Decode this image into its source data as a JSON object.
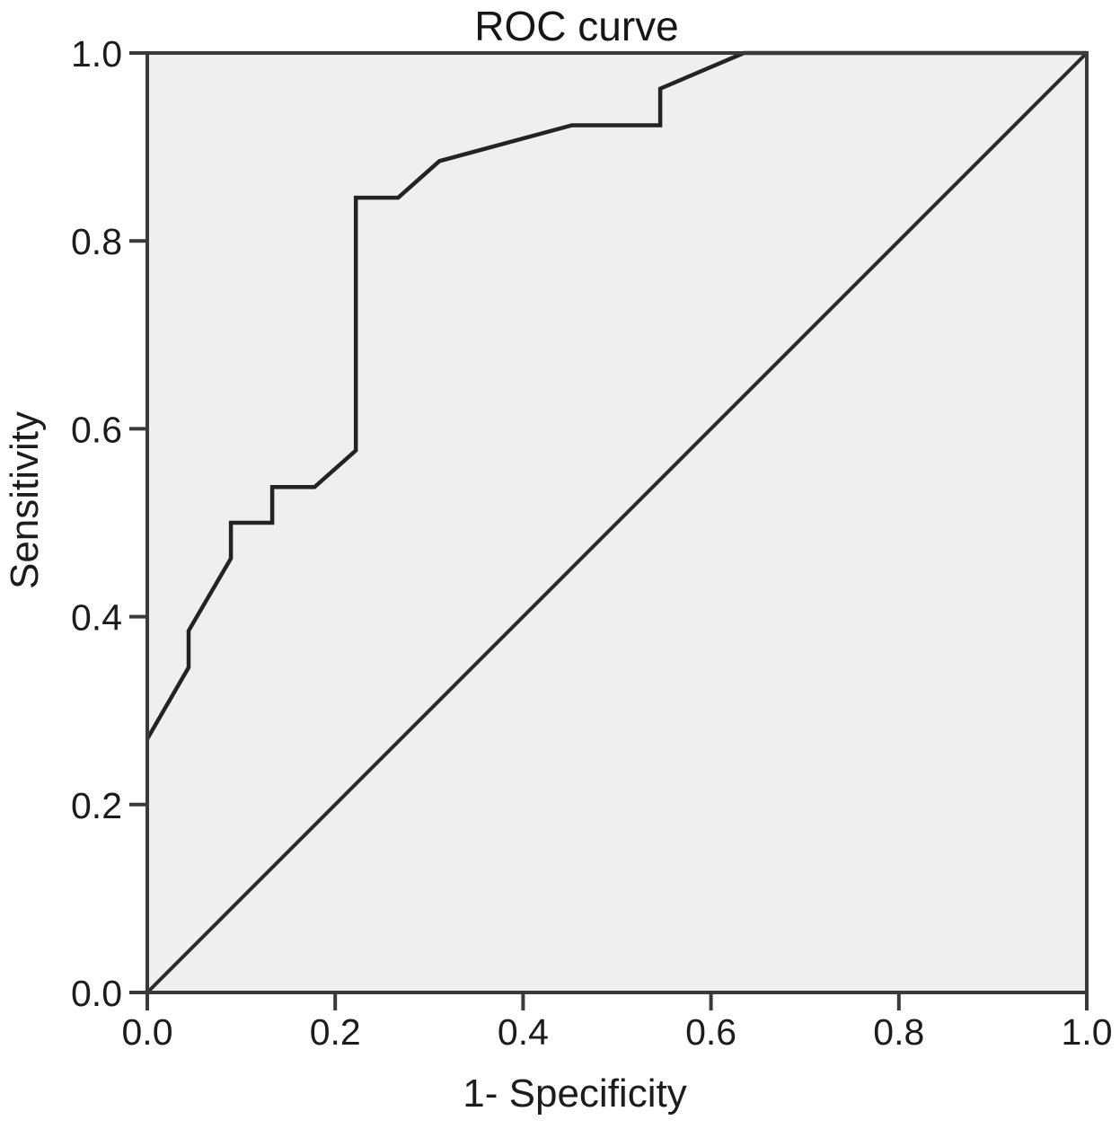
{
  "chart_data": {
    "type": "line",
    "title": "ROC curve",
    "xlabel": "1- Specificity",
    "ylabel": "Sensitivity",
    "xlim": [
      0.0,
      1.0
    ],
    "ylim": [
      0.0,
      1.0
    ],
    "xtick_labels": [
      "0.0",
      "0.2",
      "0.4",
      "0.6",
      "0.8",
      "1.0"
    ],
    "ytick_labels": [
      "0.0",
      "0.2",
      "0.4",
      "0.6",
      "0.8",
      "1.0"
    ],
    "grid": false,
    "legend": "none",
    "plot_bg_color": "#f0efef",
    "outer_bg_color": "#ffffff",
    "axis_color": "#3a3a3a",
    "text_color": "#1c1c1c",
    "series": [
      {
        "name": "roc_curve",
        "color": "#232323",
        "width": 4.5,
        "points": [
          [
            0.0,
            0.27
          ],
          [
            0.044,
            0.346
          ],
          [
            0.044,
            0.385
          ],
          [
            0.089,
            0.462
          ],
          [
            0.089,
            0.5
          ],
          [
            0.133,
            0.5
          ],
          [
            0.133,
            0.538
          ],
          [
            0.178,
            0.538
          ],
          [
            0.222,
            0.577
          ],
          [
            0.222,
            0.846
          ],
          [
            0.267,
            0.846
          ],
          [
            0.311,
            0.885
          ],
          [
            0.452,
            0.923
          ],
          [
            0.546,
            0.923
          ],
          [
            0.546,
            0.962
          ],
          [
            0.635,
            1.0
          ],
          [
            1.0,
            1.0
          ]
        ]
      },
      {
        "name": "reference_diagonal",
        "color": "#2b2b2b",
        "width": 4,
        "points": [
          [
            0.0,
            0.0
          ],
          [
            1.0,
            1.0
          ]
        ]
      }
    ]
  }
}
